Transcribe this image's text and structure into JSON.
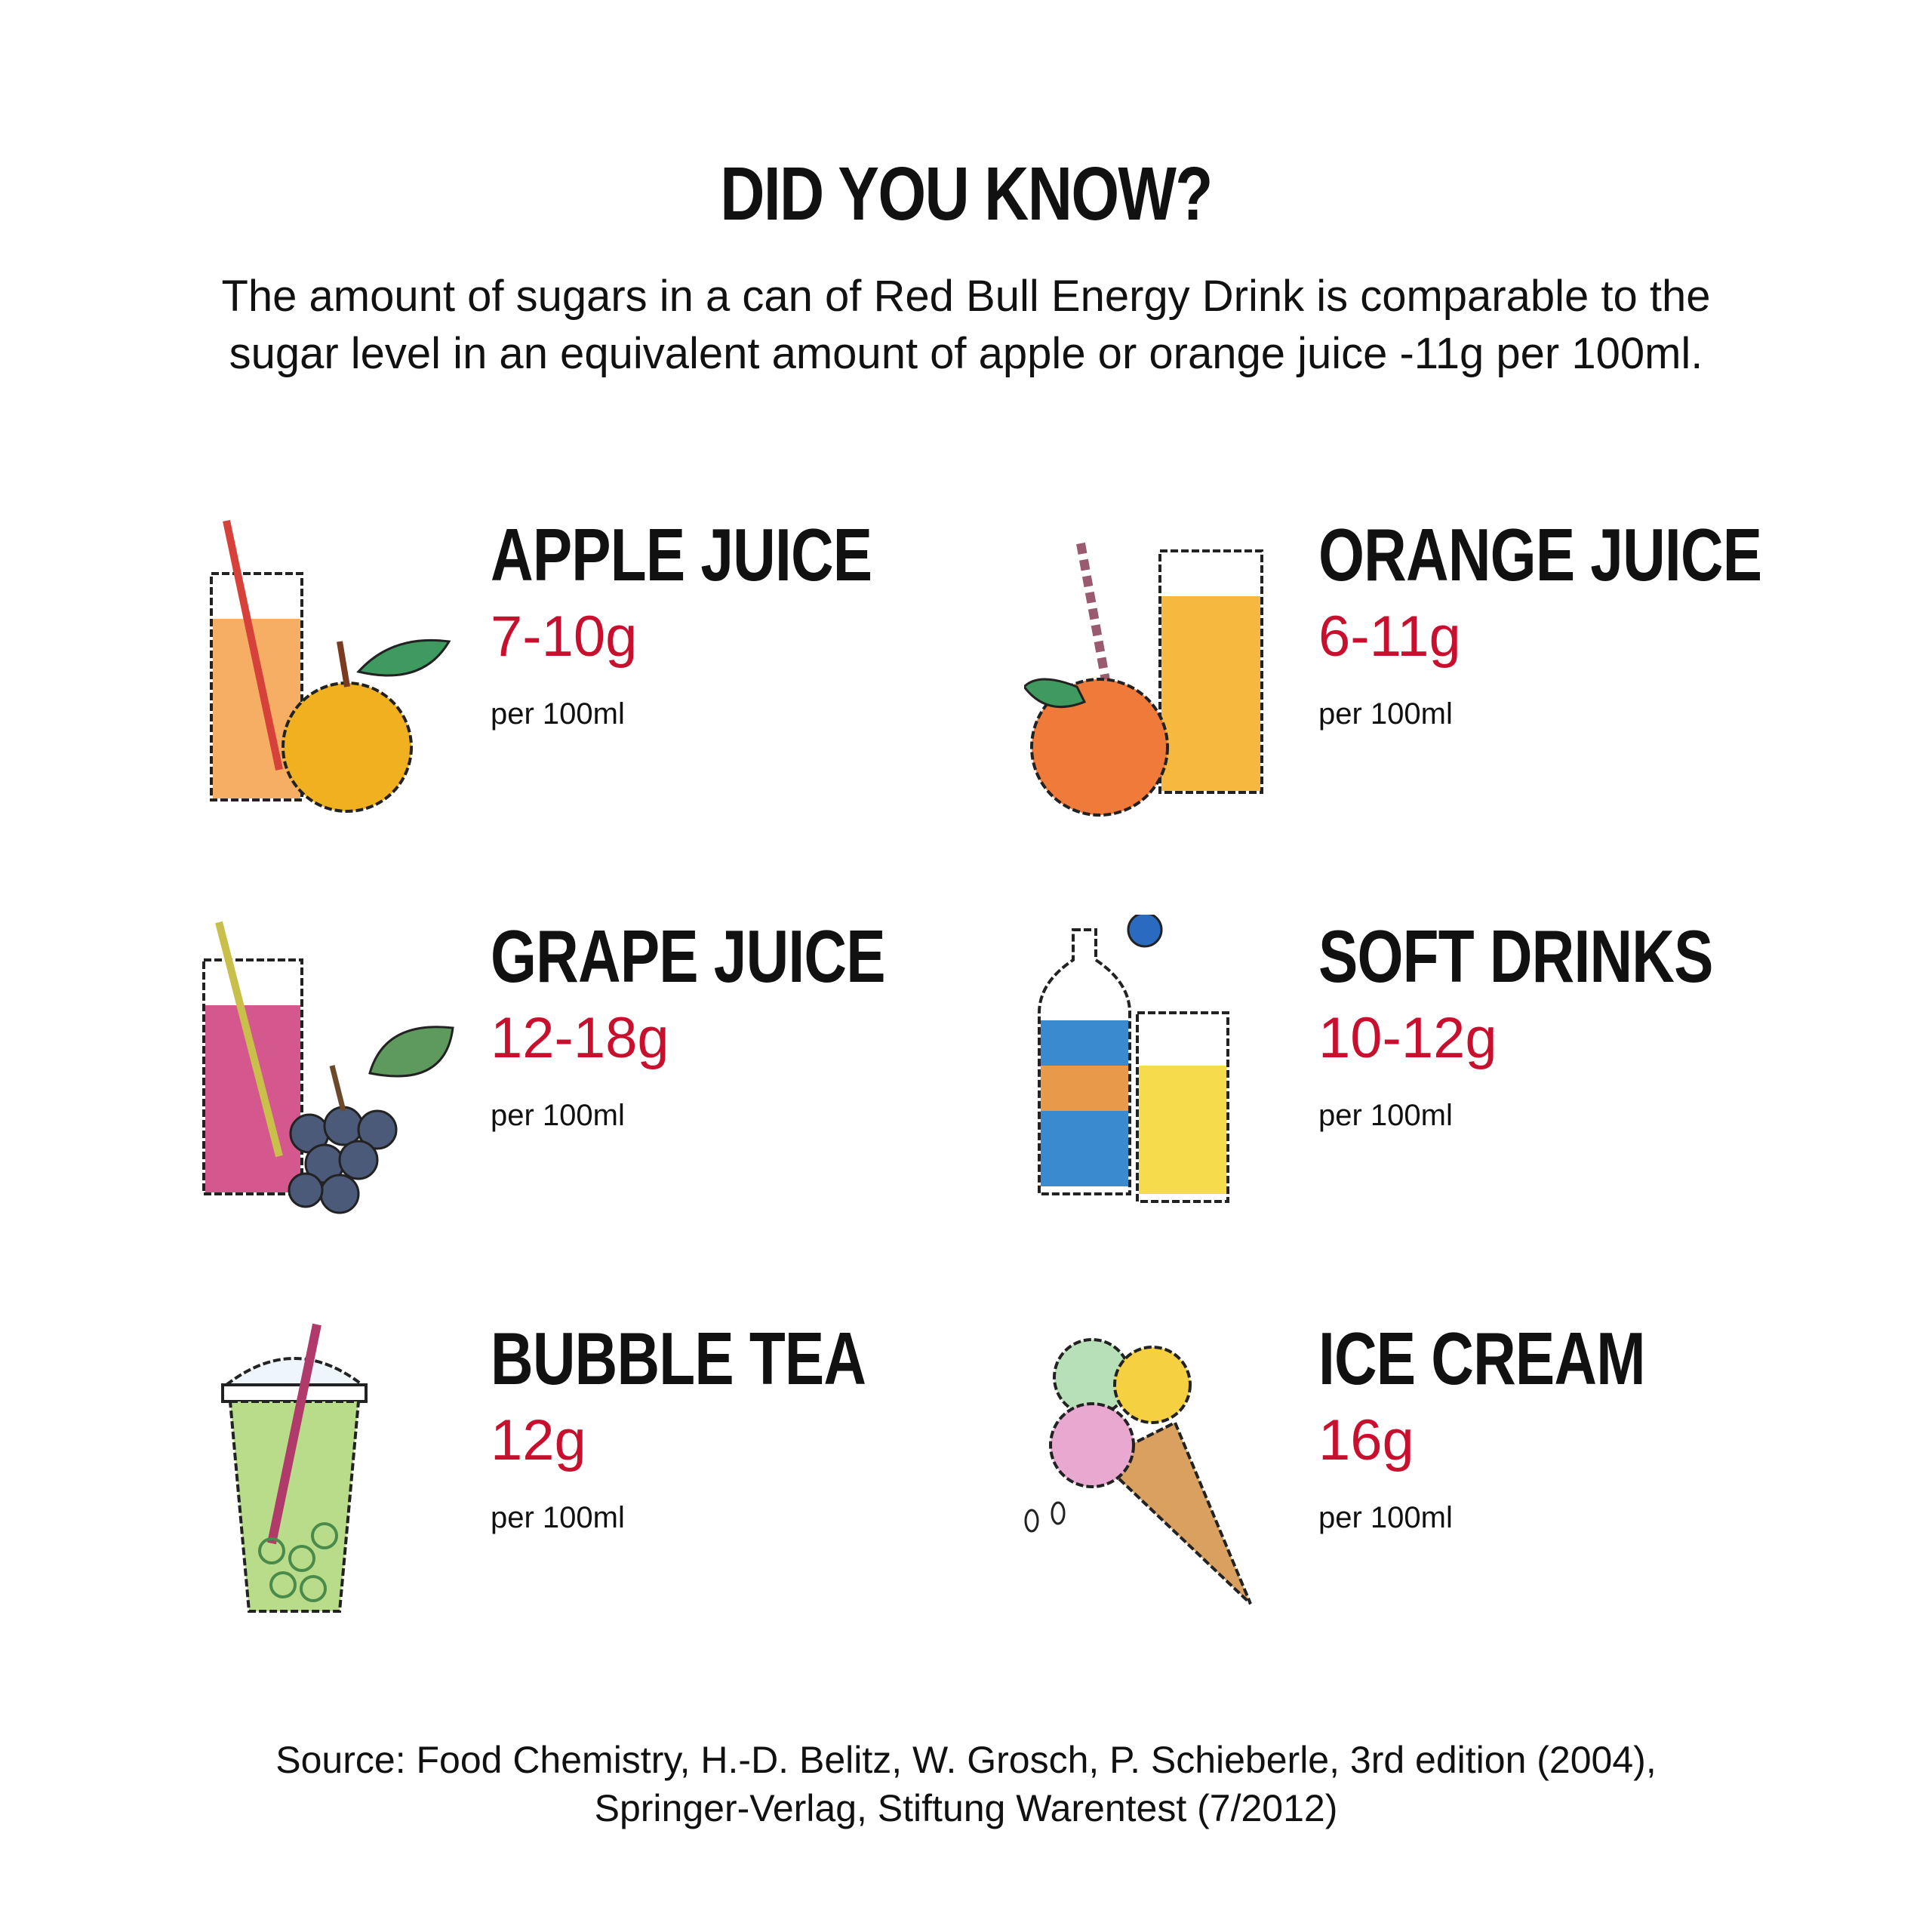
{
  "title": "DID YOU KNOW?",
  "subtitle": [
    "The amount of sugars in a can of Red Bull Energy Drink is comparable to the",
    "sugar level in an equivalent amount of apple or orange juice -11g per 100ml."
  ],
  "items": [
    {
      "name": "APPLE JUICE",
      "value": "7-10g",
      "unit": "per 100ml",
      "icon": "apple-juice-icon"
    },
    {
      "name": "ORANGE JUICE",
      "value": "6-11g",
      "unit": "per 100ml",
      "icon": "orange-juice-icon"
    },
    {
      "name": "GRAPE JUICE",
      "value": "12-18g",
      "unit": "per 100ml",
      "icon": "grape-juice-icon"
    },
    {
      "name": "SOFT DRINKS",
      "value": "10-12g",
      "unit": "per 100ml",
      "icon": "soft-drinks-icon"
    },
    {
      "name": "BUBBLE TEA",
      "value": "12g",
      "unit": "per 100ml",
      "icon": "bubble-tea-icon"
    },
    {
      "name": "ICE CREAM",
      "value": "16g",
      "unit": "per 100ml",
      "icon": "ice-cream-icon"
    }
  ],
  "source": [
    "Source: Food Chemistry, H.-D. Belitz, W. Grosch, P. Schieberle, 3rd edition (2004),",
    "Springer-Verlag, Stiftung Warentest (7/2012)"
  ],
  "colors": {
    "accent": "#c8102e",
    "text": "#111111"
  }
}
